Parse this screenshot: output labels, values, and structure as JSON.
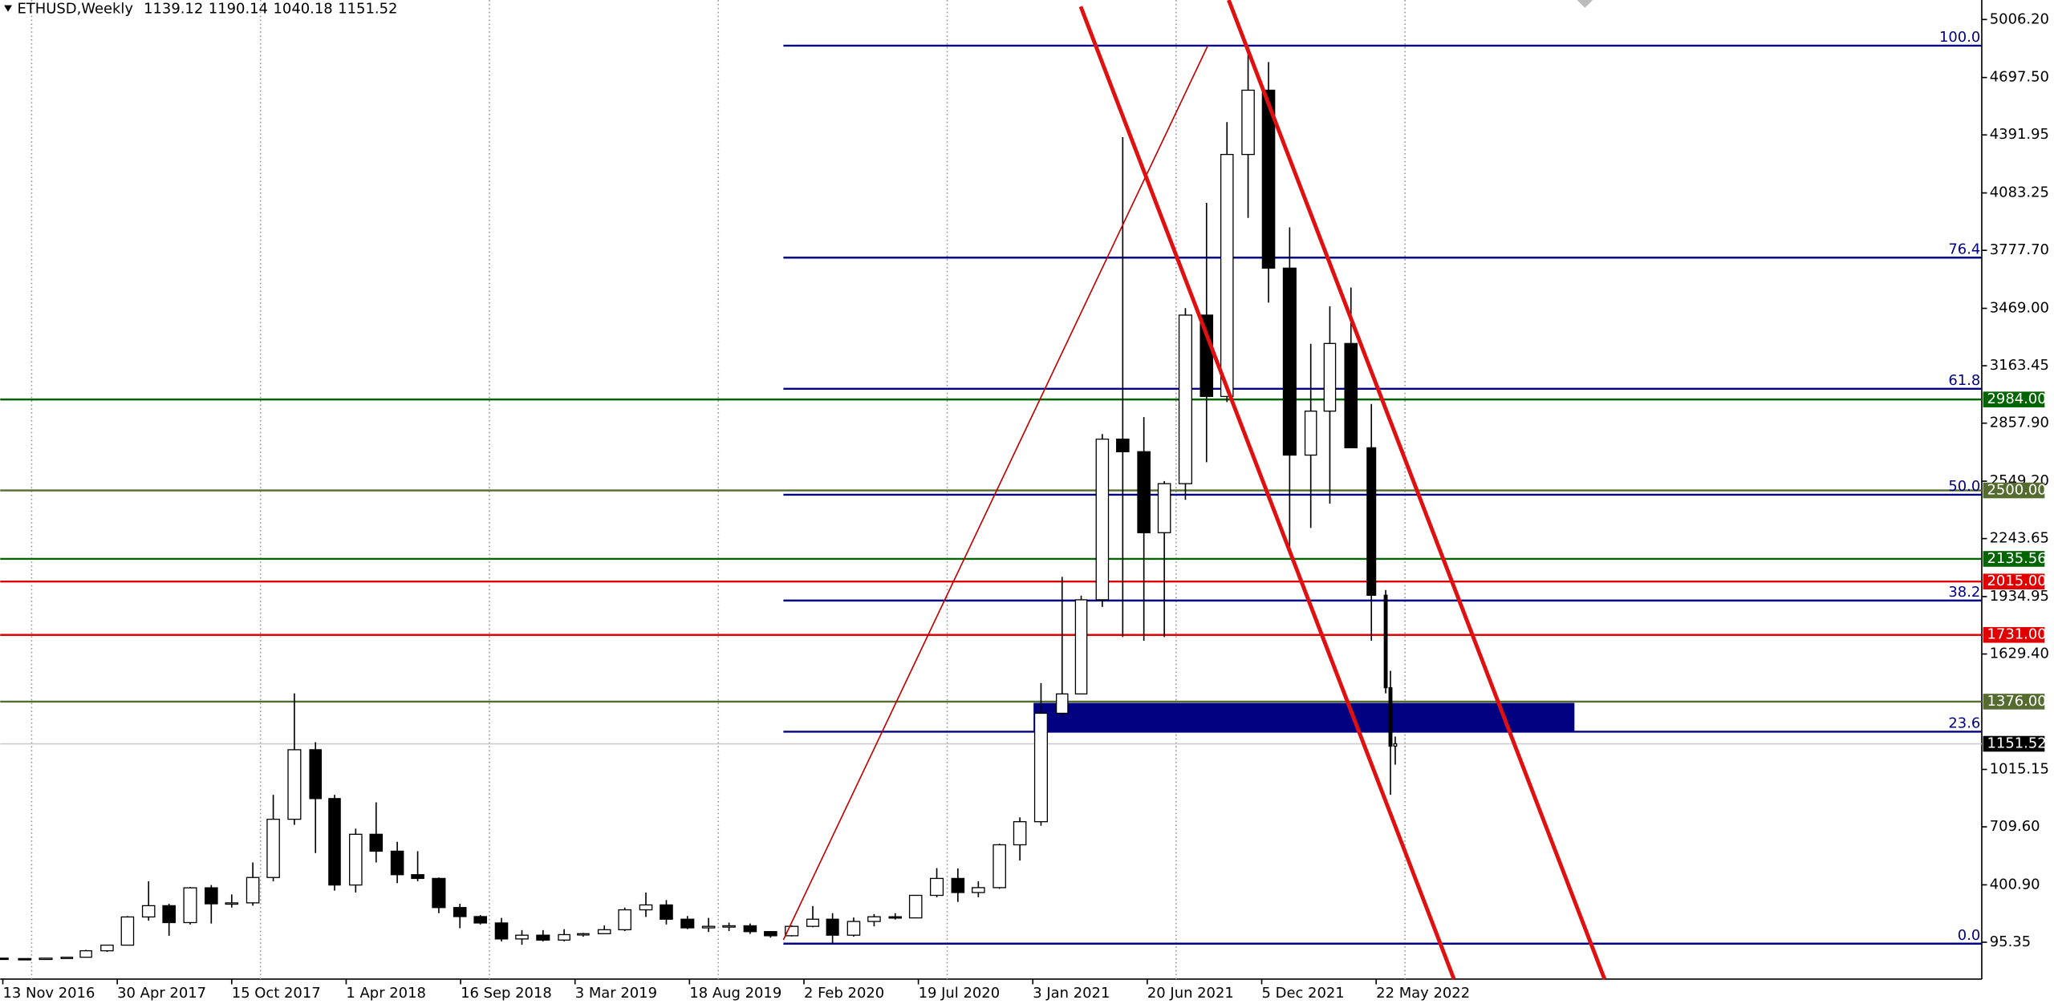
{
  "chart_data": {
    "type": "candlestick",
    "symbol": "ETHUSD,Weekly",
    "last_ohlc": [
      1139.12,
      1190.14,
      1040.18,
      1151.52
    ],
    "x": [
      "2016-11-15",
      "2016-12-15",
      "2017-01-15",
      "2017-02-15",
      "2017-03-15",
      "2017-04-15",
      "2017-05-15",
      "2017-06-15",
      "2017-07-15",
      "2017-08-15",
      "2017-09-15",
      "2017-10-15",
      "2017-11-15",
      "2017-12-15",
      "2018-01-15",
      "2018-02-15",
      "2018-03-15",
      "2018-04-15",
      "2018-05-15",
      "2018-06-15",
      "2018-07-15",
      "2018-08-15",
      "2018-09-15",
      "2018-10-15",
      "2018-11-15",
      "2018-12-15",
      "2019-01-15",
      "2019-02-15",
      "2019-03-15",
      "2019-04-15",
      "2019-05-15",
      "2019-06-15",
      "2019-07-15",
      "2019-08-15",
      "2019-09-15",
      "2019-10-15",
      "2019-11-15",
      "2019-12-15",
      "2020-01-15",
      "2020-02-15",
      "2020-03-15",
      "2020-04-15",
      "2020-05-15",
      "2020-06-15",
      "2020-07-15",
      "2020-08-15",
      "2020-09-15",
      "2020-10-15",
      "2020-11-15",
      "2020-12-15",
      "2021-01-15",
      "2021-02-15",
      "2021-03-15",
      "2021-04-15",
      "2021-05-15",
      "2021-06-15",
      "2021-07-15",
      "2021-08-15",
      "2021-09-15",
      "2021-10-15",
      "2021-11-15",
      "2021-12-15",
      "2022-01-15",
      "2022-02-15",
      "2022-03-15",
      "2022-04-15",
      "2022-05-15",
      "2022-06-05",
      "2022-06-12",
      "2022-06-19"
    ],
    "open": [
      10.7,
      8.5,
      8,
      10.7,
      15.7,
      50,
      80,
      230,
      290,
      200,
      385,
      300,
      305,
      440,
      750,
      1120,
      860,
      400,
      670,
      580,
      455,
      435,
      280,
      232,
      198,
      113,
      133,
      107,
      136,
      141,
      162,
      268,
      294,
      218,
      172,
      180,
      183,
      152,
      130,
      180,
      218,
      133,
      206,
      231,
      225,
      345,
      435,
      360,
      386,
      614,
      737,
      1314,
      1417,
      1918,
      2773,
      2706,
      2275,
      2536,
      3433,
      3000,
      4288,
      4630,
      3683,
      2688,
      2922,
      3282,
      2727,
      1942,
      1450,
      1139.12
    ],
    "high": [
      11,
      8.6,
      11.5,
      16,
      55,
      81,
      235,
      420,
      300,
      390,
      400,
      350,
      520,
      880,
      1420,
      1160,
      880,
      700,
      840,
      630,
      580,
      440,
      300,
      240,
      225,
      160,
      160,
      165,
      145,
      185,
      280,
      360,
      320,
      235,
      225,
      200,
      195,
      155,
      185,
      288,
      250,
      227,
      245,
      250,
      345,
      490,
      488,
      420,
      620,
      760,
      1475,
      2040,
      1940,
      2800,
      4380,
      2890,
      2550,
      3470,
      4030,
      4460,
      4870,
      4780,
      3900,
      3280,
      3480,
      3580,
      2960,
      1970,
      1540,
      1190.14
    ],
    "low": [
      8,
      6.9,
      7.9,
      10.5,
      15.5,
      44,
      78,
      210,
      130,
      190,
      195,
      280,
      290,
      420,
      720,
      570,
      370,
      360,
      520,
      410,
      420,
      250,
      170,
      190,
      100,
      82,
      100,
      100,
      125,
      140,
      155,
      230,
      190,
      165,
      150,
      155,
      140,
      120,
      126,
      175,
      90,
      125,
      180,
      216,
      224,
      335,
      310,
      335,
      380,
      530,
      715,
      1300,
      1430,
      1880,
      1720,
      1700,
      1720,
      2450,
      2650,
      2970,
      3950,
      3500,
      2160,
      2300,
      2430,
      2730,
      1700,
      1420,
      880,
      1040.18
    ],
    "close": [
      8.5,
      8,
      10.7,
      15.7,
      50,
      80,
      230,
      290,
      200,
      385,
      300,
      305,
      440,
      750,
      1120,
      860,
      400,
      670,
      580,
      455,
      435,
      280,
      232,
      198,
      113,
      133,
      107,
      136,
      141,
      162,
      268,
      294,
      218,
      172,
      180,
      183,
      152,
      130,
      180,
      218,
      133,
      206,
      231,
      225,
      345,
      435,
      360,
      386,
      614,
      737,
      1314,
      1417,
      1918,
      2773,
      2706,
      2275,
      2536,
      3433,
      3000,
      4288,
      4630,
      3683,
      2688,
      2922,
      3282,
      2727,
      1942,
      1450,
      1139.12,
      1151.52
    ],
    "xlim": [
      "2016-11-13",
      "2024-10-27"
    ],
    "xticks": [
      {
        "value": "2016-11-13",
        "label": "13 Nov 2016"
      },
      {
        "value": "2017-04-30",
        "label": "30 Apr 2017"
      },
      {
        "value": "2017-10-15",
        "label": "15 Oct 2017"
      },
      {
        "value": "2018-04-01",
        "label": "1 Apr 2018"
      },
      {
        "value": "2018-09-16",
        "label": "16 Sep 2018"
      },
      {
        "value": "2019-03-03",
        "label": "3 Mar 2019"
      },
      {
        "value": "2019-08-18",
        "label": "18 Aug 2019"
      },
      {
        "value": "2020-02-02",
        "label": "2 Feb 2020"
      },
      {
        "value": "2020-07-19",
        "label": "19 Jul 2020"
      },
      {
        "value": "2021-01-03",
        "label": "3 Jan 2021"
      },
      {
        "value": "2021-06-20",
        "label": "20 Jun 2021"
      },
      {
        "value": "2021-12-05",
        "label": "5 Dec 2021"
      },
      {
        "value": "2022-05-22",
        "label": "22 May 2022"
      }
    ],
    "ylim": [
      -80,
      5110
    ],
    "yticks": [
      {
        "value": 5006.2,
        "label": "5006.20"
      },
      {
        "value": 4697.5,
        "label": "4697.50"
      },
      {
        "value": 4391.95,
        "label": "4391.95"
      },
      {
        "value": 4083.25,
        "label": "4083.25"
      },
      {
        "value": 3777.7,
        "label": "3777.70"
      },
      {
        "value": 3469,
        "label": "3469.00"
      },
      {
        "value": 3163.45,
        "label": "3163.45"
      },
      {
        "value": 2857.9,
        "label": "2857.90"
      },
      {
        "value": 2549.2,
        "label": "2549.20"
      },
      {
        "value": 2243.65,
        "label": "2243.65"
      },
      {
        "value": 1934.95,
        "label": "1934.95"
      },
      {
        "value": 1629.4,
        "label": "1629.40"
      },
      {
        "value": 1015.15,
        "label": "1015.15"
      },
      {
        "value": 709.6,
        "label": "709.60"
      },
      {
        "value": 400.9,
        "label": "400.90"
      },
      {
        "value": 95.35,
        "label": "95.35"
      }
    ],
    "levels": [
      {
        "value": 2984,
        "label": "2984.00",
        "color": "#006400"
      },
      {
        "value": 2500,
        "label": "2500.00",
        "color": "#556b2f"
      },
      {
        "value": 2135.56,
        "label": "2135.56",
        "color": "#006400"
      },
      {
        "value": 2015,
        "label": "2015.00",
        "color": "#e00000"
      },
      {
        "value": 1731,
        "label": "1731.00",
        "color": "#e00000"
      },
      {
        "value": 1376,
        "label": "1376.00",
        "color": "#556b2f"
      }
    ],
    "fib": [
      {
        "value": 100,
        "label": "100.0",
        "price": 4867
      },
      {
        "value": 76.4,
        "label": "76.4",
        "price": 3739
      },
      {
        "value": 61.8,
        "label": "61.8",
        "price": 3041
      },
      {
        "value": 50,
        "label": "50.0",
        "price": 2477
      },
      {
        "value": 38.2,
        "label": "38.2",
        "price": 1914
      },
      {
        "value": 23.6,
        "label": "23.6",
        "price": 1216
      },
      {
        "value": 0,
        "label": "0.0",
        "price": 88
      }
    ],
    "fib_color": "#000080",
    "price_line": 1151.52,
    "bull_color": "#ffffff",
    "bear_color": "#000000"
  }
}
